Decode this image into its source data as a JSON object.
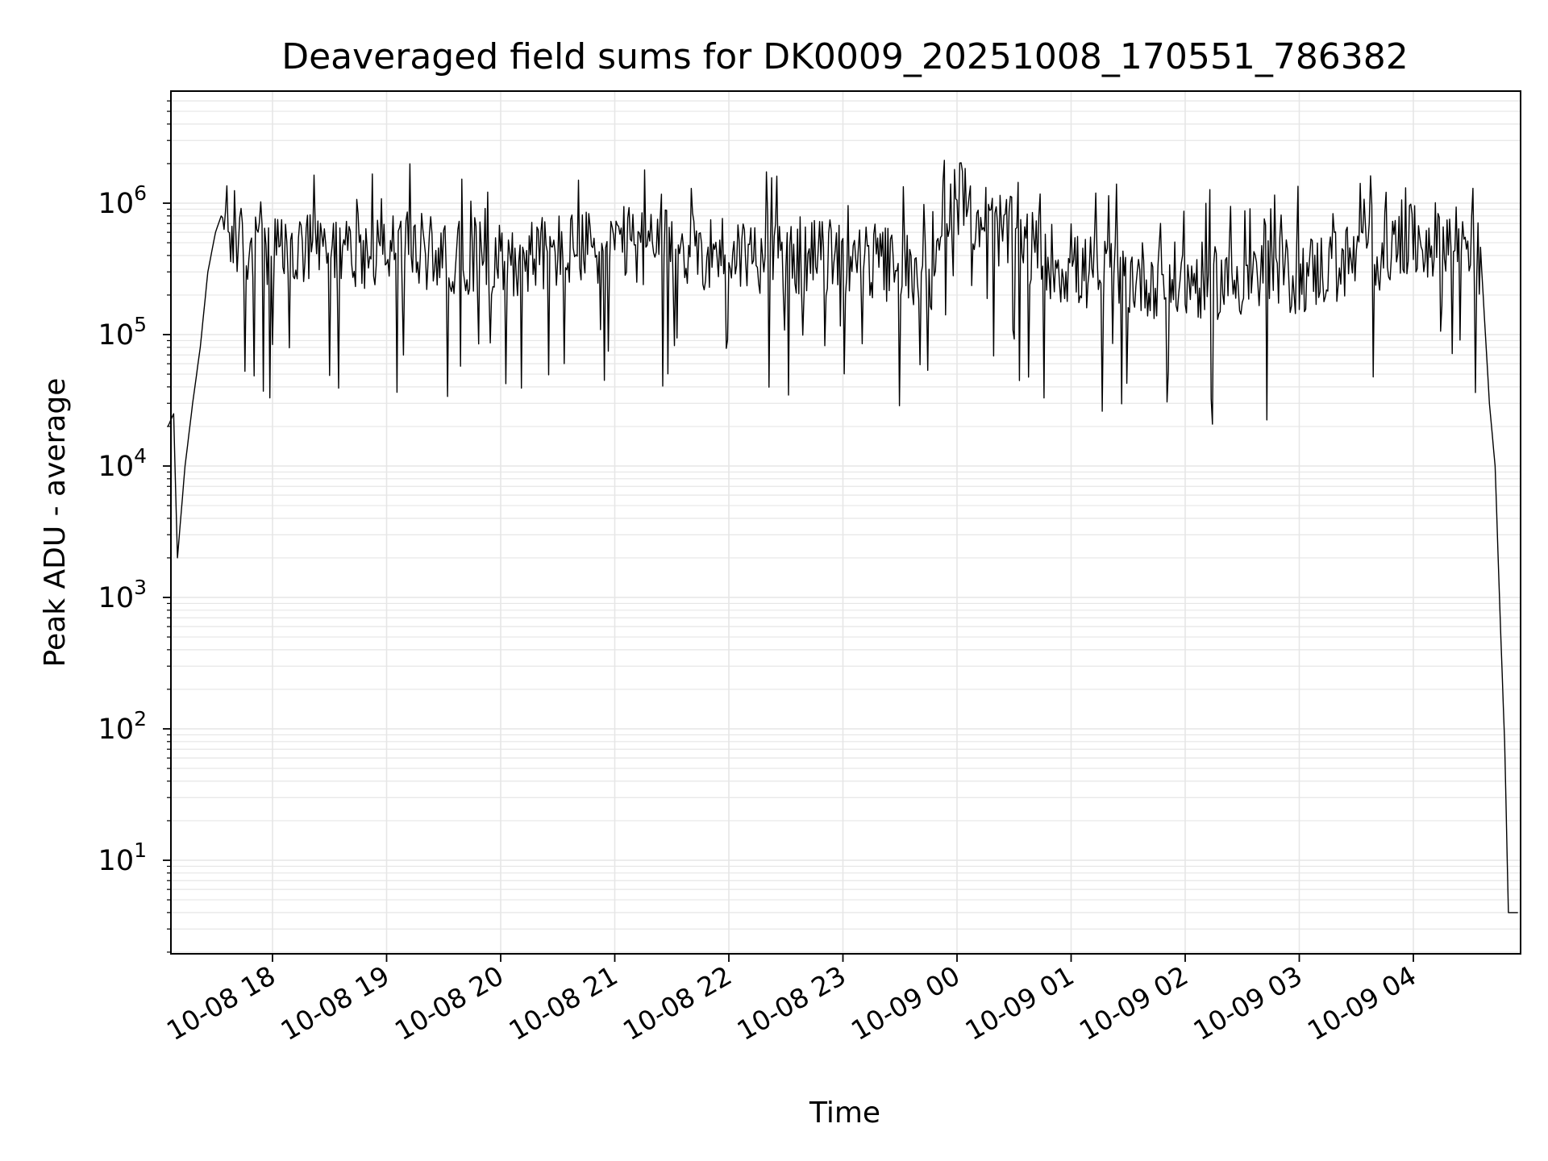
{
  "chart_data": {
    "type": "line",
    "title": "Deaveraged field sums for DK0009_20251008_170551_786382",
    "xlabel": "Time",
    "ylabel": "Peak ADU - average",
    "yscale": "log",
    "ylim": [
      2,
      6500000
    ],
    "xlim": [
      "2025-10-08 17:05",
      "2025-10-09 04:55"
    ],
    "grid": true,
    "x_ticks": [
      "10-08 18",
      "10-08 19",
      "10-08 20",
      "10-08 21",
      "10-08 22",
      "10-08 23",
      "10-09 00",
      "10-09 01",
      "10-09 02",
      "10-09 03",
      "10-09 04"
    ],
    "y_ticks": [
      {
        "base": "10",
        "exp": "1"
      },
      {
        "base": "10",
        "exp": "2"
      },
      {
        "base": "10",
        "exp": "3"
      },
      {
        "base": "10",
        "exp": "4"
      },
      {
        "base": "10",
        "exp": "5"
      },
      {
        "base": "10",
        "exp": "6"
      }
    ],
    "line_color": "#000000",
    "grid_color": "#e6e6e6",
    "series": [
      {
        "x": [
          "2025-10-08 17:05",
          "2025-10-08 17:08",
          "2025-10-08 17:10",
          "2025-10-08 17:14",
          "2025-10-08 17:18",
          "2025-10-08 17:22",
          "2025-10-08 17:26",
          "2025-10-08 17:30",
          "2025-10-08 17:33",
          "2025-10-08 17:36",
          "2025-10-08 17:40",
          "2025-10-08 18:00",
          "2025-10-08 19:00",
          "2025-10-08 20:00",
          "2025-10-08 21:00",
          "2025-10-08 22:00",
          "2025-10-08 23:00",
          "2025-10-08 23:50",
          "2025-10-09 00:00",
          "2025-10-09 00:05",
          "2025-10-09 01:00",
          "2025-10-09 02:00",
          "2025-10-09 03:00",
          "2025-10-09 04:00",
          "2025-10-09 04:30",
          "2025-10-09 04:36",
          "2025-10-09 04:40",
          "2025-10-09 04:43",
          "2025-10-09 04:46",
          "2025-10-09 04:48",
          "2025-10-09 04:50",
          "2025-10-09 04:52",
          "2025-10-09 04:55"
        ],
        "values": [
          20000,
          25000,
          2000,
          10000,
          30000,
          80000,
          300000,
          600000,
          800000,
          700000,
          500000,
          400000,
          450000,
          380000,
          480000,
          420000,
          380000,
          300000,
          1200000,
          900000,
          300000,
          250000,
          280000,
          500000,
          550000,
          300000,
          30000,
          10000,
          500,
          80,
          4,
          4,
          4
        ]
      }
    ]
  }
}
